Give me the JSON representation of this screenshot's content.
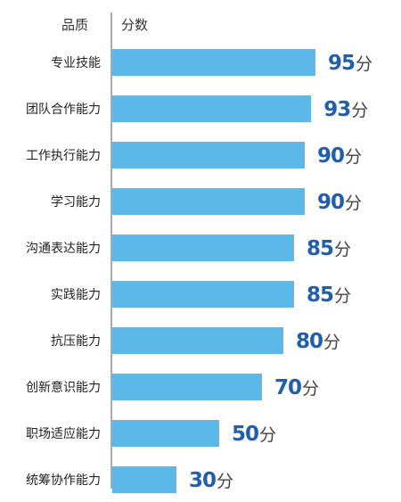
{
  "chart_data": {
    "type": "bar",
    "orientation": "horizontal",
    "header": {
      "category_label": "品质",
      "value_label": "分数"
    },
    "categories": [
      "专业技能",
      "团队合作能力",
      "工作执行能力",
      "学习能力",
      "沟通表达能力",
      "实践能力",
      "抗压能力",
      "创新意识能力",
      "职场适应能力",
      "统筹协作能力"
    ],
    "values": [
      95,
      93,
      90,
      90,
      85,
      85,
      80,
      70,
      50,
      30
    ],
    "unit": "分",
    "xlim": [
      0,
      100
    ],
    "grid": false,
    "legend": "none"
  },
  "colors": {
    "bar": "#5cb8e8",
    "value_text": "#1f5fae",
    "axis": "#555555"
  }
}
